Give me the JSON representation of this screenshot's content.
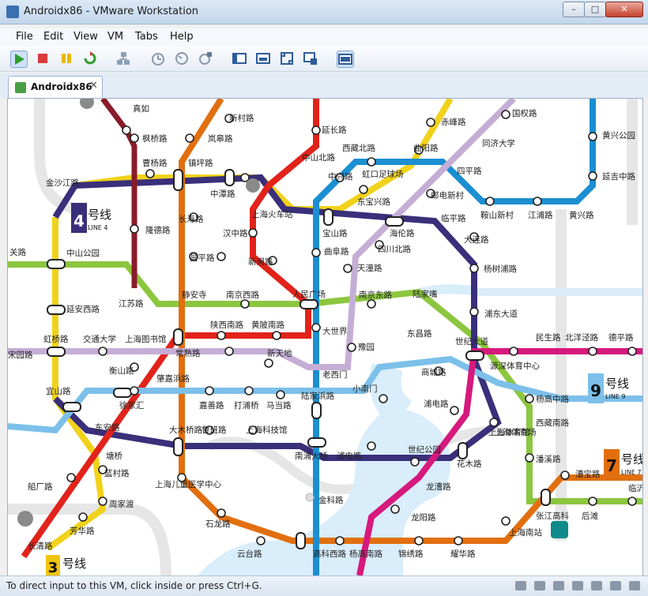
{
  "window": {
    "title": "Androidx86 - VMware Workstation",
    "minimize": "–",
    "maximize": "□",
    "close": "✕"
  },
  "menu": [
    "File",
    "Edit",
    "View",
    "VM",
    "Tabs",
    "Help"
  ],
  "toolbar": [
    "play-icon",
    "stop-icon",
    "pause-icon",
    "reset-icon",
    "network-icon",
    "snapshot-icon",
    "revert-snapshot-icon",
    "snapshot-manager-icon",
    "console-view-icon",
    "fullscreen-icon",
    "quick-switch-icon",
    "unity-icon",
    "thumbnail-bar-icon"
  ],
  "tab": {
    "label": "Androidx86",
    "close": "✕"
  },
  "status": {
    "text": "To direct input to this VM, click inside or press Ctrl+G."
  },
  "map": {
    "badges": [
      {
        "num": "4",
        "name": "号线",
        "sub": "LINE 4",
        "color": "#3a2f7a"
      },
      {
        "num": "9",
        "name": "号线",
        "sub": "LINE 9",
        "color": "#7cc0ea"
      },
      {
        "num": "7",
        "name": "号线",
        "sub": "LINE 7",
        "color": "#e26f0f"
      },
      {
        "num": "3",
        "name": "号线",
        "sub": "",
        "color": "#f1c40f"
      }
    ],
    "stations": [
      "真如",
      "新村路",
      "延长路",
      "赤峰路",
      "国权路",
      "枫桥路",
      "岚皋路",
      "西藏北路",
      "曲阳路",
      "同济大学",
      "黄兴公园",
      "曹杨路",
      "镇坪路",
      "中山北路",
      "四平路",
      "金沙江路",
      "中潭路",
      "中兴路",
      "虹口足球场",
      "邮电新村",
      "延吉中路",
      "东宝兴路",
      "上海火车站",
      "长寿路",
      "宝山路",
      "海伦路",
      "临平路",
      "鞍山新村",
      "江浦路",
      "黄兴路",
      "隆德路",
      "汉中路",
      "四川北路",
      "大连路",
      "中山公园",
      "昌平路",
      "曲阜路",
      "新闸路",
      "天潼路",
      "杨树浦路",
      "关路",
      "江苏路",
      "静安寺",
      "南京西路",
      "人民广场",
      "南京东路",
      "陆家嘴",
      "延安西路",
      "浦东大道",
      "陕西南路",
      "黄陂南路",
      "大世界",
      "东昌路",
      "交通大学",
      "上海图书馆",
      "常熟路",
      "新天地",
      "豫园",
      "世纪大道",
      "民生路",
      "北洋泾路",
      "德平路",
      "虹桥路",
      "衡山路",
      "老西门",
      "源深体育中心",
      "商城路",
      "宋园路",
      "肇嘉浜路",
      "宜山路",
      "徐家汇",
      "嘉善路",
      "打浦桥",
      "马当路",
      "陆家浜路",
      "小南门",
      "杨高中路",
      "浦电路",
      "上海体育馆",
      "东安路",
      "大木桥路",
      "鲁班路",
      "上海科技馆",
      "西藏南路",
      "南浦大桥",
      "浦电路",
      "上海体育场",
      "塘桥",
      "世纪公园",
      "潘溪路",
      "蓝村路",
      "花木路",
      "漕宝路",
      "船厂路",
      "上海儿童医学中心",
      "龙漕路",
      "周家渡",
      "金科路",
      "临沂新村",
      "龙阳路",
      "张江高科",
      "后滩",
      "石龙路",
      "芳华路",
      "上海南站",
      "长清路",
      "云台路",
      "高科西路",
      "杨高南路",
      "锦绣路",
      "耀华路"
    ]
  }
}
